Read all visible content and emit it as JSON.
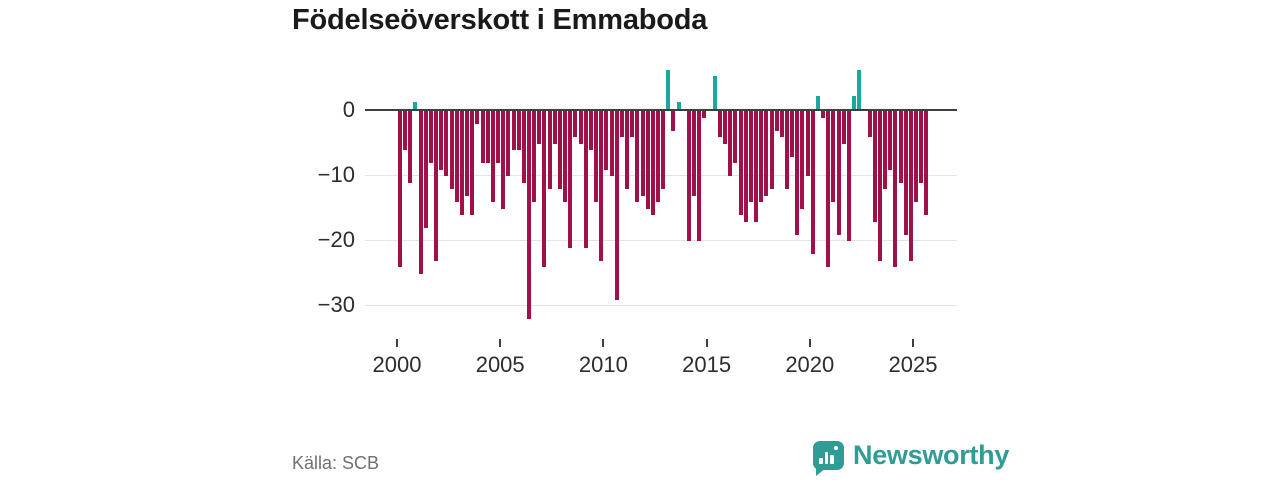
{
  "title": "Födelseöverskott i Emmaboda",
  "source": "Källa: SCB",
  "brand": {
    "name": "Newsworthy",
    "color": "#2f9c95",
    "logo_icon": "bar-chart-speech-bubble-icon"
  },
  "chart_data": {
    "type": "bar",
    "title": "Födelseöverskott i Emmaboda",
    "frequency": "quarterly",
    "start_period": "2000-Q1",
    "end_period": "2025-Q3",
    "values": [
      -24,
      -6,
      -11,
      1,
      -25,
      -18,
      -8,
      -23,
      -9,
      -10,
      -12,
      -14,
      -16,
      -13,
      -16,
      -2,
      -8,
      -8,
      -14,
      -8,
      -15,
      -10,
      -6,
      -6,
      -11,
      -32,
      -14,
      -5,
      -24,
      -12,
      -5,
      -12,
      -14,
      -21,
      -4,
      -5,
      -21,
      -6,
      -14,
      -23,
      -9,
      -10,
      -29,
      -4,
      -12,
      -4,
      -14,
      -13,
      -15,
      -16,
      -14,
      -12,
      6,
      -3,
      1,
      0,
      -20,
      -13,
      -20,
      -1,
      0,
      5,
      -4,
      -5,
      -10,
      -8,
      -16,
      -17,
      -14,
      -17,
      -14,
      -13,
      -12,
      -3,
      -4,
      -12,
      -7,
      -19,
      -15,
      -10,
      -22,
      2,
      -1,
      -24,
      -14,
      -19,
      -5,
      -20,
      2,
      6,
      0,
      -4,
      -17,
      -23,
      -12,
      -9,
      -24,
      -11,
      -19,
      -23,
      -14,
      -11,
      -16
    ],
    "x_ticks": [
      2000,
      2005,
      2010,
      2015,
      2020,
      2025
    ],
    "y_ticks": [
      0,
      -10,
      -20,
      -30
    ],
    "y_tick_labels": [
      "0",
      "−10",
      "−20",
      "−30"
    ],
    "ylim": [
      -33,
      7
    ],
    "grid": true,
    "legend": "none",
    "colors": {
      "negative_bar": "#a01049",
      "positive_bar": "#1ba69e",
      "axis_line": "#3d3d3d",
      "gridline": "#e3e3e3"
    }
  }
}
